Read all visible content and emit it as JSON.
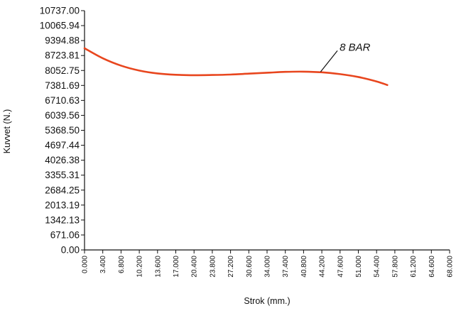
{
  "chart_data": {
    "type": "line",
    "xlabel": "Strok (mm.)",
    "ylabel": "Kuvvet (N.)",
    "xlim": [
      0,
      68
    ],
    "ylim": [
      0,
      10737
    ],
    "x_ticks": [
      "0.000",
      "3.400",
      "6.800",
      "10.200",
      "13.600",
      "17.000",
      "20.400",
      "23.800",
      "27.200",
      "30.600",
      "34.000",
      "37.400",
      "40.800",
      "44.200",
      "47.600",
      "51.000",
      "54.400",
      "57.800",
      "61.200",
      "64.600",
      "68.000"
    ],
    "y_ticks": [
      "0.00",
      "671.06",
      "1342.13",
      "2013.19",
      "2684.25",
      "3355.31",
      "4026.38",
      "4697.44",
      "5368.50",
      "6039.56",
      "6710.63",
      "7381.69",
      "8052.75",
      "8723.81",
      "9394.88",
      "10065.94",
      "10737.00"
    ],
    "series": [
      {
        "name": "8 BAR",
        "color": "#e8461e",
        "x": [
          0,
          3.4,
          6.8,
          10.2,
          13.6,
          17,
          20.4,
          23.8,
          27.2,
          30.6,
          34,
          37.4,
          40.8,
          44.2,
          47.6,
          51,
          54.4,
          56.4
        ],
        "y": [
          9050,
          8600,
          8270,
          8050,
          7920,
          7860,
          7840,
          7850,
          7870,
          7910,
          7950,
          7990,
          8000,
          7970,
          7890,
          7760,
          7560,
          7400
        ]
      }
    ],
    "annotations": [
      {
        "text": "8 BAR",
        "series": "8 BAR",
        "at_x": 44.5,
        "label_x": 47.9,
        "label_y": 9070
      }
    ],
    "grid": false
  }
}
